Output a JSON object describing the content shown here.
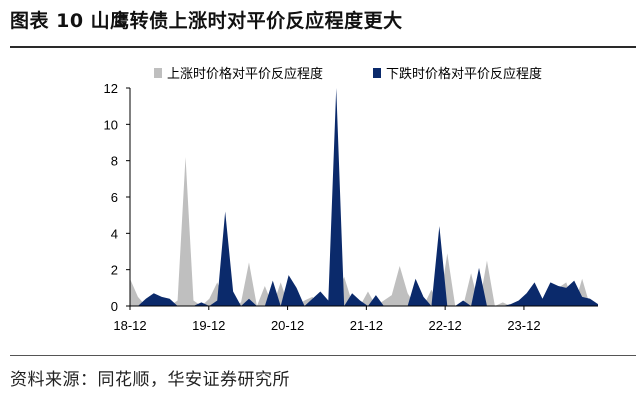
{
  "figure": {
    "title": "图表 10 山鹰转债上涨时对平价反应程度更大",
    "source": "资料来源：同花顺，华安证券研究所"
  },
  "chart_data": {
    "type": "area",
    "ylim": [
      0,
      12
    ],
    "yticks": [
      "0",
      "2",
      "4",
      "6",
      "8",
      "10",
      "12"
    ],
    "xticks": [
      "18-12",
      "19-12",
      "20-12",
      "21-12",
      "22-12",
      "23-12"
    ],
    "legend_position": "top",
    "grid": false,
    "series": [
      {
        "name": "上涨时价格对平价反应程度",
        "color": "#bfbfbf",
        "values": [
          1.5,
          0.5,
          0,
          0,
          0,
          0,
          0.3,
          8.2,
          0.3,
          0,
          0.4,
          1.3,
          0.3,
          0,
          0.2,
          2.4,
          0,
          1.1,
          0,
          1.3,
          0,
          0,
          0.3,
          0.5,
          0,
          0.2,
          0.6,
          1.6,
          0.2,
          0,
          0.8,
          0,
          0.3,
          0.6,
          2.2,
          0.7,
          0,
          0,
          0.9,
          0,
          2.9,
          0,
          0,
          1.8,
          0,
          2.5,
          0,
          0.2,
          0,
          0,
          0,
          0,
          0,
          0,
          1,
          1.3,
          0,
          1.5,
          0,
          0
        ]
      },
      {
        "name": "下跌时价格对平价反应程度",
        "color": "#0b2a6b",
        "values": [
          0,
          0,
          0.4,
          0.7,
          0.5,
          0.4,
          0,
          0,
          0,
          0.2,
          0,
          0.3,
          5.2,
          0.8,
          0,
          0.4,
          0,
          0,
          1.4,
          0,
          1.7,
          1,
          0,
          0.4,
          0.8,
          0.3,
          12,
          0,
          0.7,
          0.3,
          0,
          0.6,
          0,
          0,
          0,
          0,
          1.5,
          0.5,
          0,
          4.4,
          0,
          0,
          0.3,
          0,
          2.1,
          0,
          0,
          0,
          0.1,
          0.3,
          0.7,
          1.3,
          0.4,
          1.3,
          1.1,
          1,
          1.4,
          0.5,
          0.4,
          0.1
        ]
      }
    ]
  }
}
